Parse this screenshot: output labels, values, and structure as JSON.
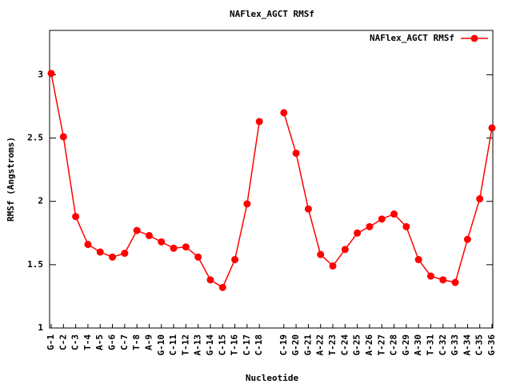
{
  "chart_data": {
    "type": "line",
    "title": "NAFlex_AGCT RMSf",
    "x_label": "Nucleotide",
    "y_label": "RMSf (Angstroms)",
    "categories": [
      "G-1",
      "C-2",
      "C-3",
      "T-4",
      "A-5",
      "G-6",
      "C-7",
      "T-8",
      "A-9",
      "G-10",
      "C-11",
      "T-12",
      "A-13",
      "G-14",
      "C-15",
      "T-16",
      "C-17",
      "C-18",
      null,
      "C-19",
      "G-20",
      "G-21",
      "A-22",
      "T-23",
      "C-24",
      "G-25",
      "A-26",
      "T-27",
      "C-28",
      "G-29",
      "A-30",
      "T-31",
      "C-32",
      "G-33",
      "A-34",
      "C-35",
      "G-36"
    ],
    "series": [
      {
        "name": "NAFlex_AGCT RMSf",
        "color": "#ff0000",
        "values": [
          3.01,
          2.51,
          1.88,
          1.66,
          1.6,
          1.56,
          1.59,
          1.77,
          1.73,
          1.68,
          1.63,
          1.64,
          1.56,
          1.38,
          1.32,
          1.54,
          1.98,
          2.63,
          null,
          2.7,
          2.38,
          1.94,
          1.58,
          1.49,
          1.62,
          1.75,
          1.8,
          1.86,
          1.9,
          1.8,
          1.54,
          1.41,
          1.38,
          1.36,
          1.7,
          2.02,
          2.58
        ]
      }
    ],
    "ylim": [
      1,
      3.35
    ],
    "yticks": [
      1,
      1.5,
      2,
      2.5,
      3
    ],
    "legend": "top-right"
  }
}
